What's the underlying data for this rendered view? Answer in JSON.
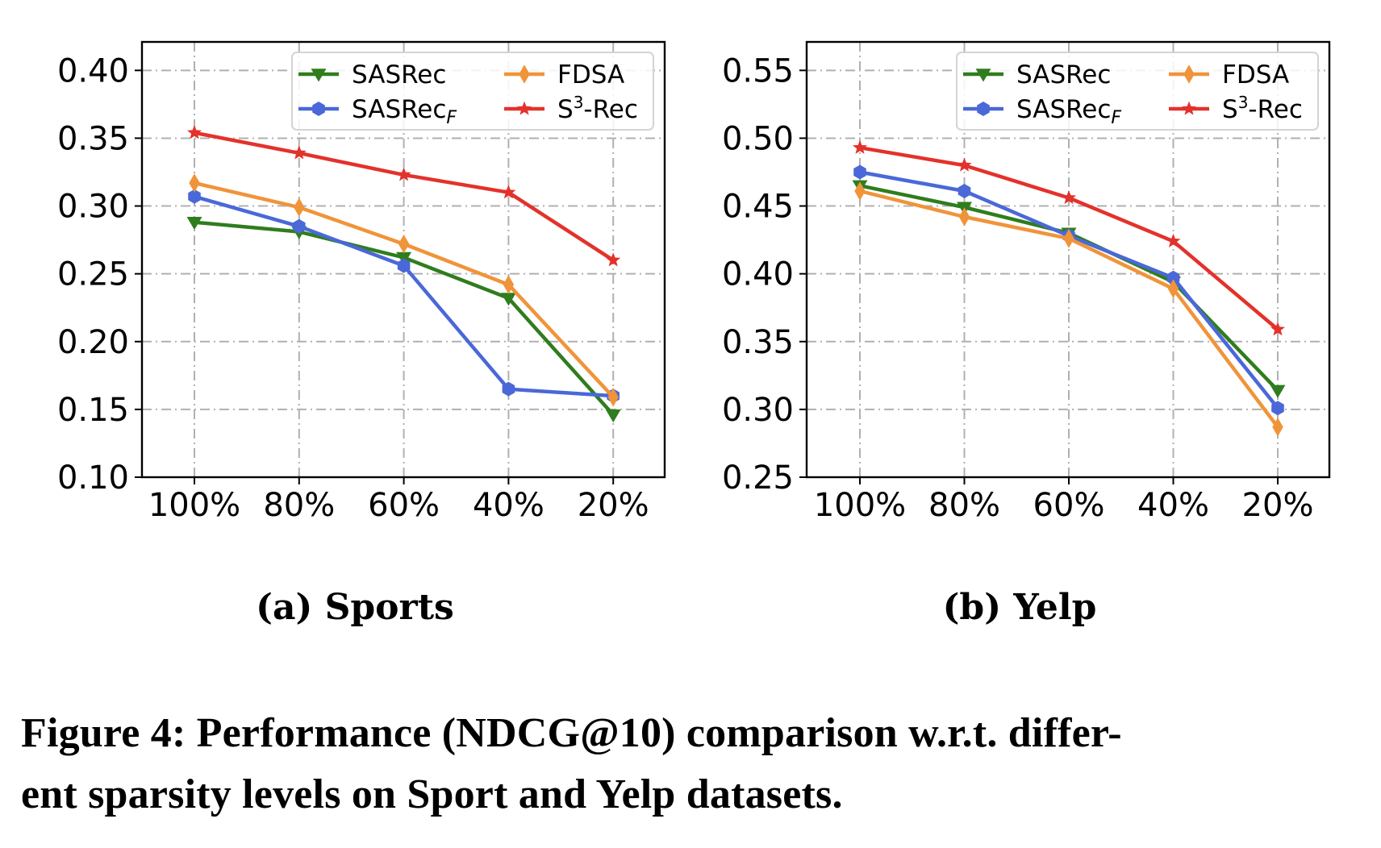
{
  "figure": {
    "caption_lines": [
      "Figure 4: Performance (NDCG@10) comparison w.r.t. differ-",
      "ent sparsity levels on Sport and Yelp datasets."
    ]
  },
  "legend": {
    "entries": [
      {
        "name": "SASRec",
        "base": "SASRec",
        "sub": "",
        "sup": "",
        "suffix": "",
        "marker": "triangle-down",
        "color": "#2f7d1e"
      },
      {
        "name": "SASRecF",
        "base": "SASRec",
        "sub": "F",
        "sup": "",
        "suffix": "",
        "marker": "hexagon",
        "color": "#4a68d8"
      },
      {
        "name": "FDSA",
        "base": "FDSA",
        "sub": "",
        "sup": "",
        "suffix": "",
        "marker": "diamond",
        "color": "#f0943a"
      },
      {
        "name": "S3-Rec",
        "base": "S",
        "sub": "",
        "sup": "3",
        "suffix": "-Rec",
        "marker": "star",
        "color": "#e3322b"
      }
    ]
  },
  "chart_data": [
    {
      "type": "line",
      "title": "(a) Sports",
      "xlabel": "",
      "ylabel": "",
      "categories": [
        "100%",
        "80%",
        "60%",
        "40%",
        "20%"
      ],
      "ylim": [
        0.1,
        0.421
      ],
      "yticks": [
        "0.10",
        "0.15",
        "0.20",
        "0.25",
        "0.30",
        "0.35",
        "0.40"
      ],
      "grid": true,
      "legend_position": "top-right",
      "series": [
        {
          "name": "SASRec",
          "values": [
            0.288,
            0.281,
            0.262,
            0.232,
            0.146
          ]
        },
        {
          "name": "SASRecF",
          "values": [
            0.307,
            0.285,
            0.256,
            0.165,
            0.16
          ]
        },
        {
          "name": "FDSA",
          "values": [
            0.317,
            0.299,
            0.272,
            0.242,
            0.159
          ]
        },
        {
          "name": "S3-Rec",
          "values": [
            0.354,
            0.339,
            0.323,
            0.31,
            0.26
          ]
        }
      ]
    },
    {
      "type": "line",
      "title": "(b) Yelp",
      "xlabel": "",
      "ylabel": "",
      "categories": [
        "100%",
        "80%",
        "60%",
        "40%",
        "20%"
      ],
      "ylim": [
        0.25,
        0.571
      ],
      "yticks": [
        "0.25",
        "0.30",
        "0.35",
        "0.40",
        "0.45",
        "0.50",
        "0.55"
      ],
      "grid": true,
      "legend_position": "top-right",
      "series": [
        {
          "name": "SASRec",
          "values": [
            0.465,
            0.449,
            0.43,
            0.394,
            0.314
          ]
        },
        {
          "name": "SASRecF",
          "values": [
            0.475,
            0.461,
            0.428,
            0.397,
            0.301
          ]
        },
        {
          "name": "FDSA",
          "values": [
            0.461,
            0.442,
            0.426,
            0.389,
            0.287
          ]
        },
        {
          "name": "S3-Rec",
          "values": [
            0.493,
            0.48,
            0.456,
            0.424,
            0.359
          ]
        }
      ]
    }
  ]
}
